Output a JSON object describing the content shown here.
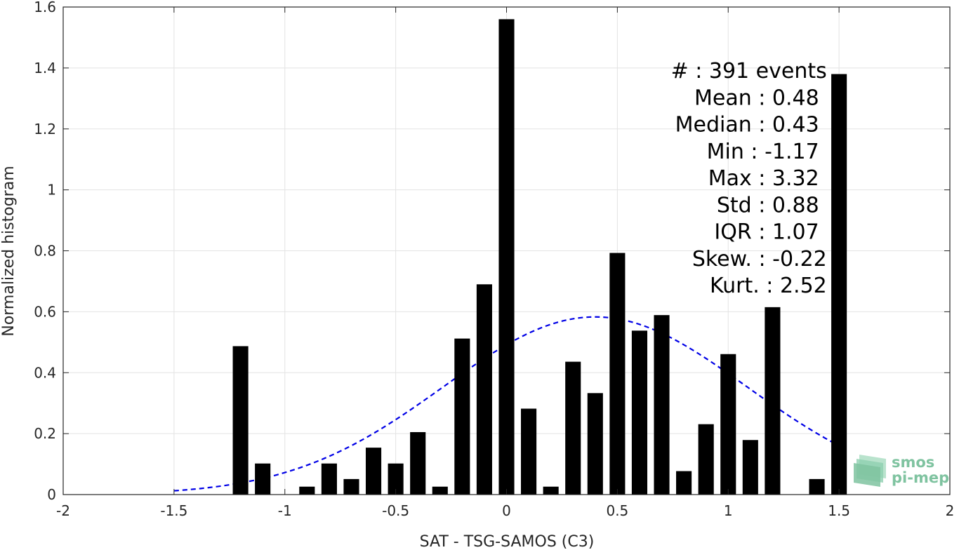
{
  "chart_data": {
    "type": "bar",
    "xlabel": "SAT - TSG-SAMOS (C3)",
    "ylabel": "Normalized histogram",
    "xlim": [
      -2,
      2
    ],
    "ylim": [
      0,
      1.6
    ],
    "x_ticks": [
      -2,
      -1.5,
      -1,
      -0.5,
      0,
      0.5,
      1,
      1.5,
      2
    ],
    "x_tick_labels": [
      "-2",
      "-1.5",
      "-1",
      "-0.5",
      "0",
      "0.5",
      "1",
      "1.5",
      "2"
    ],
    "y_ticks": [
      0,
      0.2,
      0.4,
      0.6,
      0.8,
      1,
      1.2,
      1.4,
      1.6
    ],
    "y_tick_labels": [
      "0",
      "0.2",
      "0.4",
      "0.6",
      "0.8",
      "1",
      "1.2",
      "1.4",
      "1.6"
    ],
    "grid": true,
    "bar_color": "#000000",
    "bar_width": 0.07,
    "bars": {
      "x": [
        -1.2,
        -1.1,
        -0.9,
        -0.8,
        -0.7,
        -0.6,
        -0.5,
        -0.4,
        -0.3,
        -0.2,
        -0.1,
        0.0,
        0.1,
        0.2,
        0.3,
        0.4,
        0.5,
        0.6,
        0.7,
        0.8,
        0.9,
        1.0,
        1.1,
        1.2,
        1.4,
        1.5
      ],
      "values": [
        0.487,
        0.102,
        0.026,
        0.102,
        0.051,
        0.154,
        0.102,
        0.205,
        0.026,
        0.512,
        0.69,
        1.56,
        0.282,
        0.026,
        0.436,
        0.333,
        0.793,
        0.538,
        0.589,
        0.077,
        0.231,
        0.461,
        0.179,
        0.615,
        0.051,
        1.38
      ]
    },
    "fit_curve": {
      "type": "gaussian",
      "color": "#0000e6",
      "style": "dashed",
      "x_range": [
        -1.5,
        1.5
      ],
      "mean": 0.4,
      "std": 0.685,
      "peak": 0.583
    },
    "stats": [
      {
        "label": "#  : 391 events",
        "anchor": "end",
        "x": 1.445,
        "y": 1.39
      },
      {
        "label": "Mean : 0.48",
        "anchor": "end",
        "x": 1.41,
        "y": 1.302
      },
      {
        "label": "Median : 0.43",
        "anchor": "end",
        "x": 1.41,
        "y": 1.214
      },
      {
        "label": "Min : -1.17",
        "anchor": "end",
        "x": 1.41,
        "y": 1.126
      },
      {
        "label": "Max : 3.32",
        "anchor": "end",
        "x": 1.41,
        "y": 1.038
      },
      {
        "label": "Std : 0.88",
        "anchor": "end",
        "x": 1.41,
        "y": 0.95
      },
      {
        "label": "IQR : 1.07",
        "anchor": "end",
        "x": 1.41,
        "y": 0.862
      },
      {
        "label": "Skew. : -0.22",
        "anchor": "end",
        "x": 1.445,
        "y": 0.774
      },
      {
        "label": "Kurt. : 2.52",
        "anchor": "end",
        "x": 1.445,
        "y": 0.686
      }
    ]
  },
  "logo": {
    "line1": "smos",
    "line2": "pi-mep",
    "color": "#7fc3a0"
  }
}
